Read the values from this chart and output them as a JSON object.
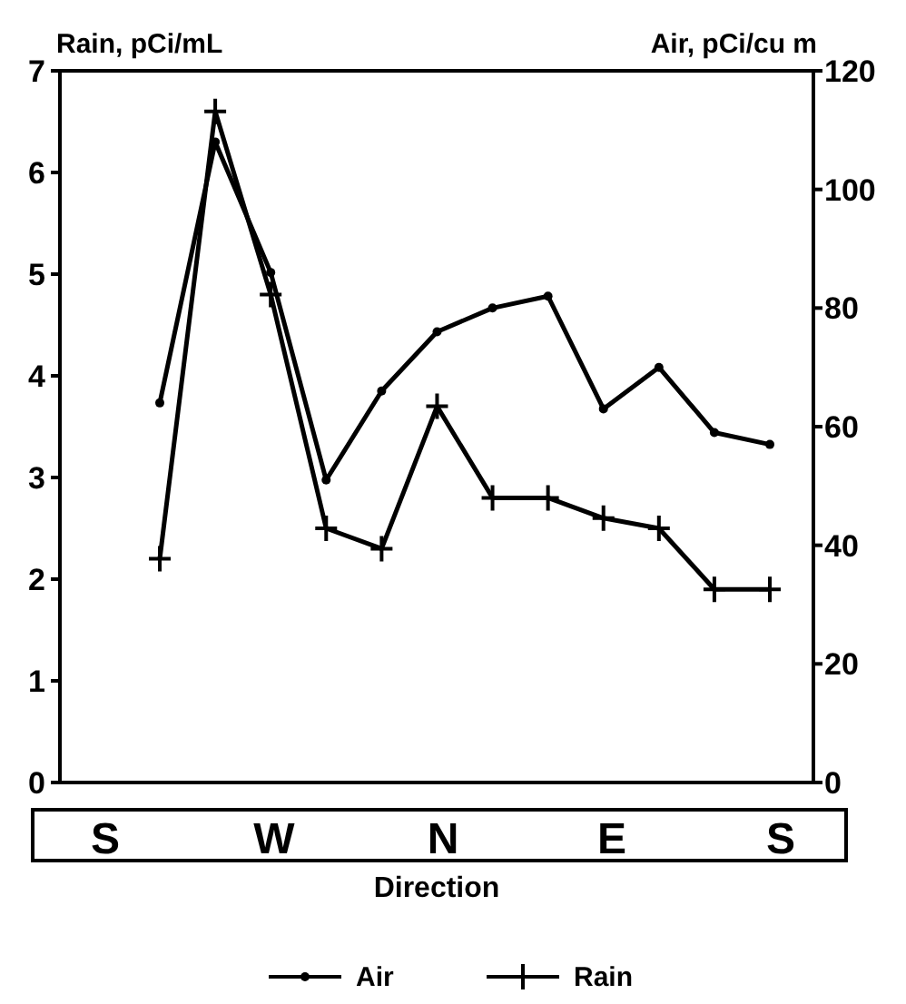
{
  "chart_data": {
    "type": "line",
    "xlabel": "Direction",
    "ylabel": "Rain, pCi/mL",
    "y2label": "Air, pCi/cu m",
    "categories": [
      null,
      null,
      null,
      null,
      null,
      null,
      null,
      null,
      null,
      null,
      null,
      null
    ],
    "annotations": [
      "S",
      "W",
      "N",
      "E",
      "S"
    ],
    "ylim": [
      0,
      7
    ],
    "yticks": [
      0,
      1,
      2,
      3,
      4,
      5,
      6,
      7
    ],
    "y2lim": [
      0,
      120
    ],
    "y2ticks": [
      0,
      20,
      40,
      60,
      80,
      100,
      120
    ],
    "series": [
      {
        "name": "Air",
        "color": "#000000",
        "axis": "y2",
        "marker": "circle",
        "values": [
          64,
          108,
          86,
          51,
          66,
          76,
          80,
          82,
          63,
          70,
          59,
          57
        ]
      },
      {
        "name": "Rain",
        "color": "#000000",
        "axis": "y",
        "marker": "cross",
        "values": [
          2.2,
          6.6,
          4.8,
          2.5,
          2.3,
          3.7,
          2.8,
          2.8,
          2.6,
          2.5,
          1.9,
          1.9
        ]
      }
    ],
    "grid": false,
    "legend": "bottom",
    "line_style": "solid"
  }
}
